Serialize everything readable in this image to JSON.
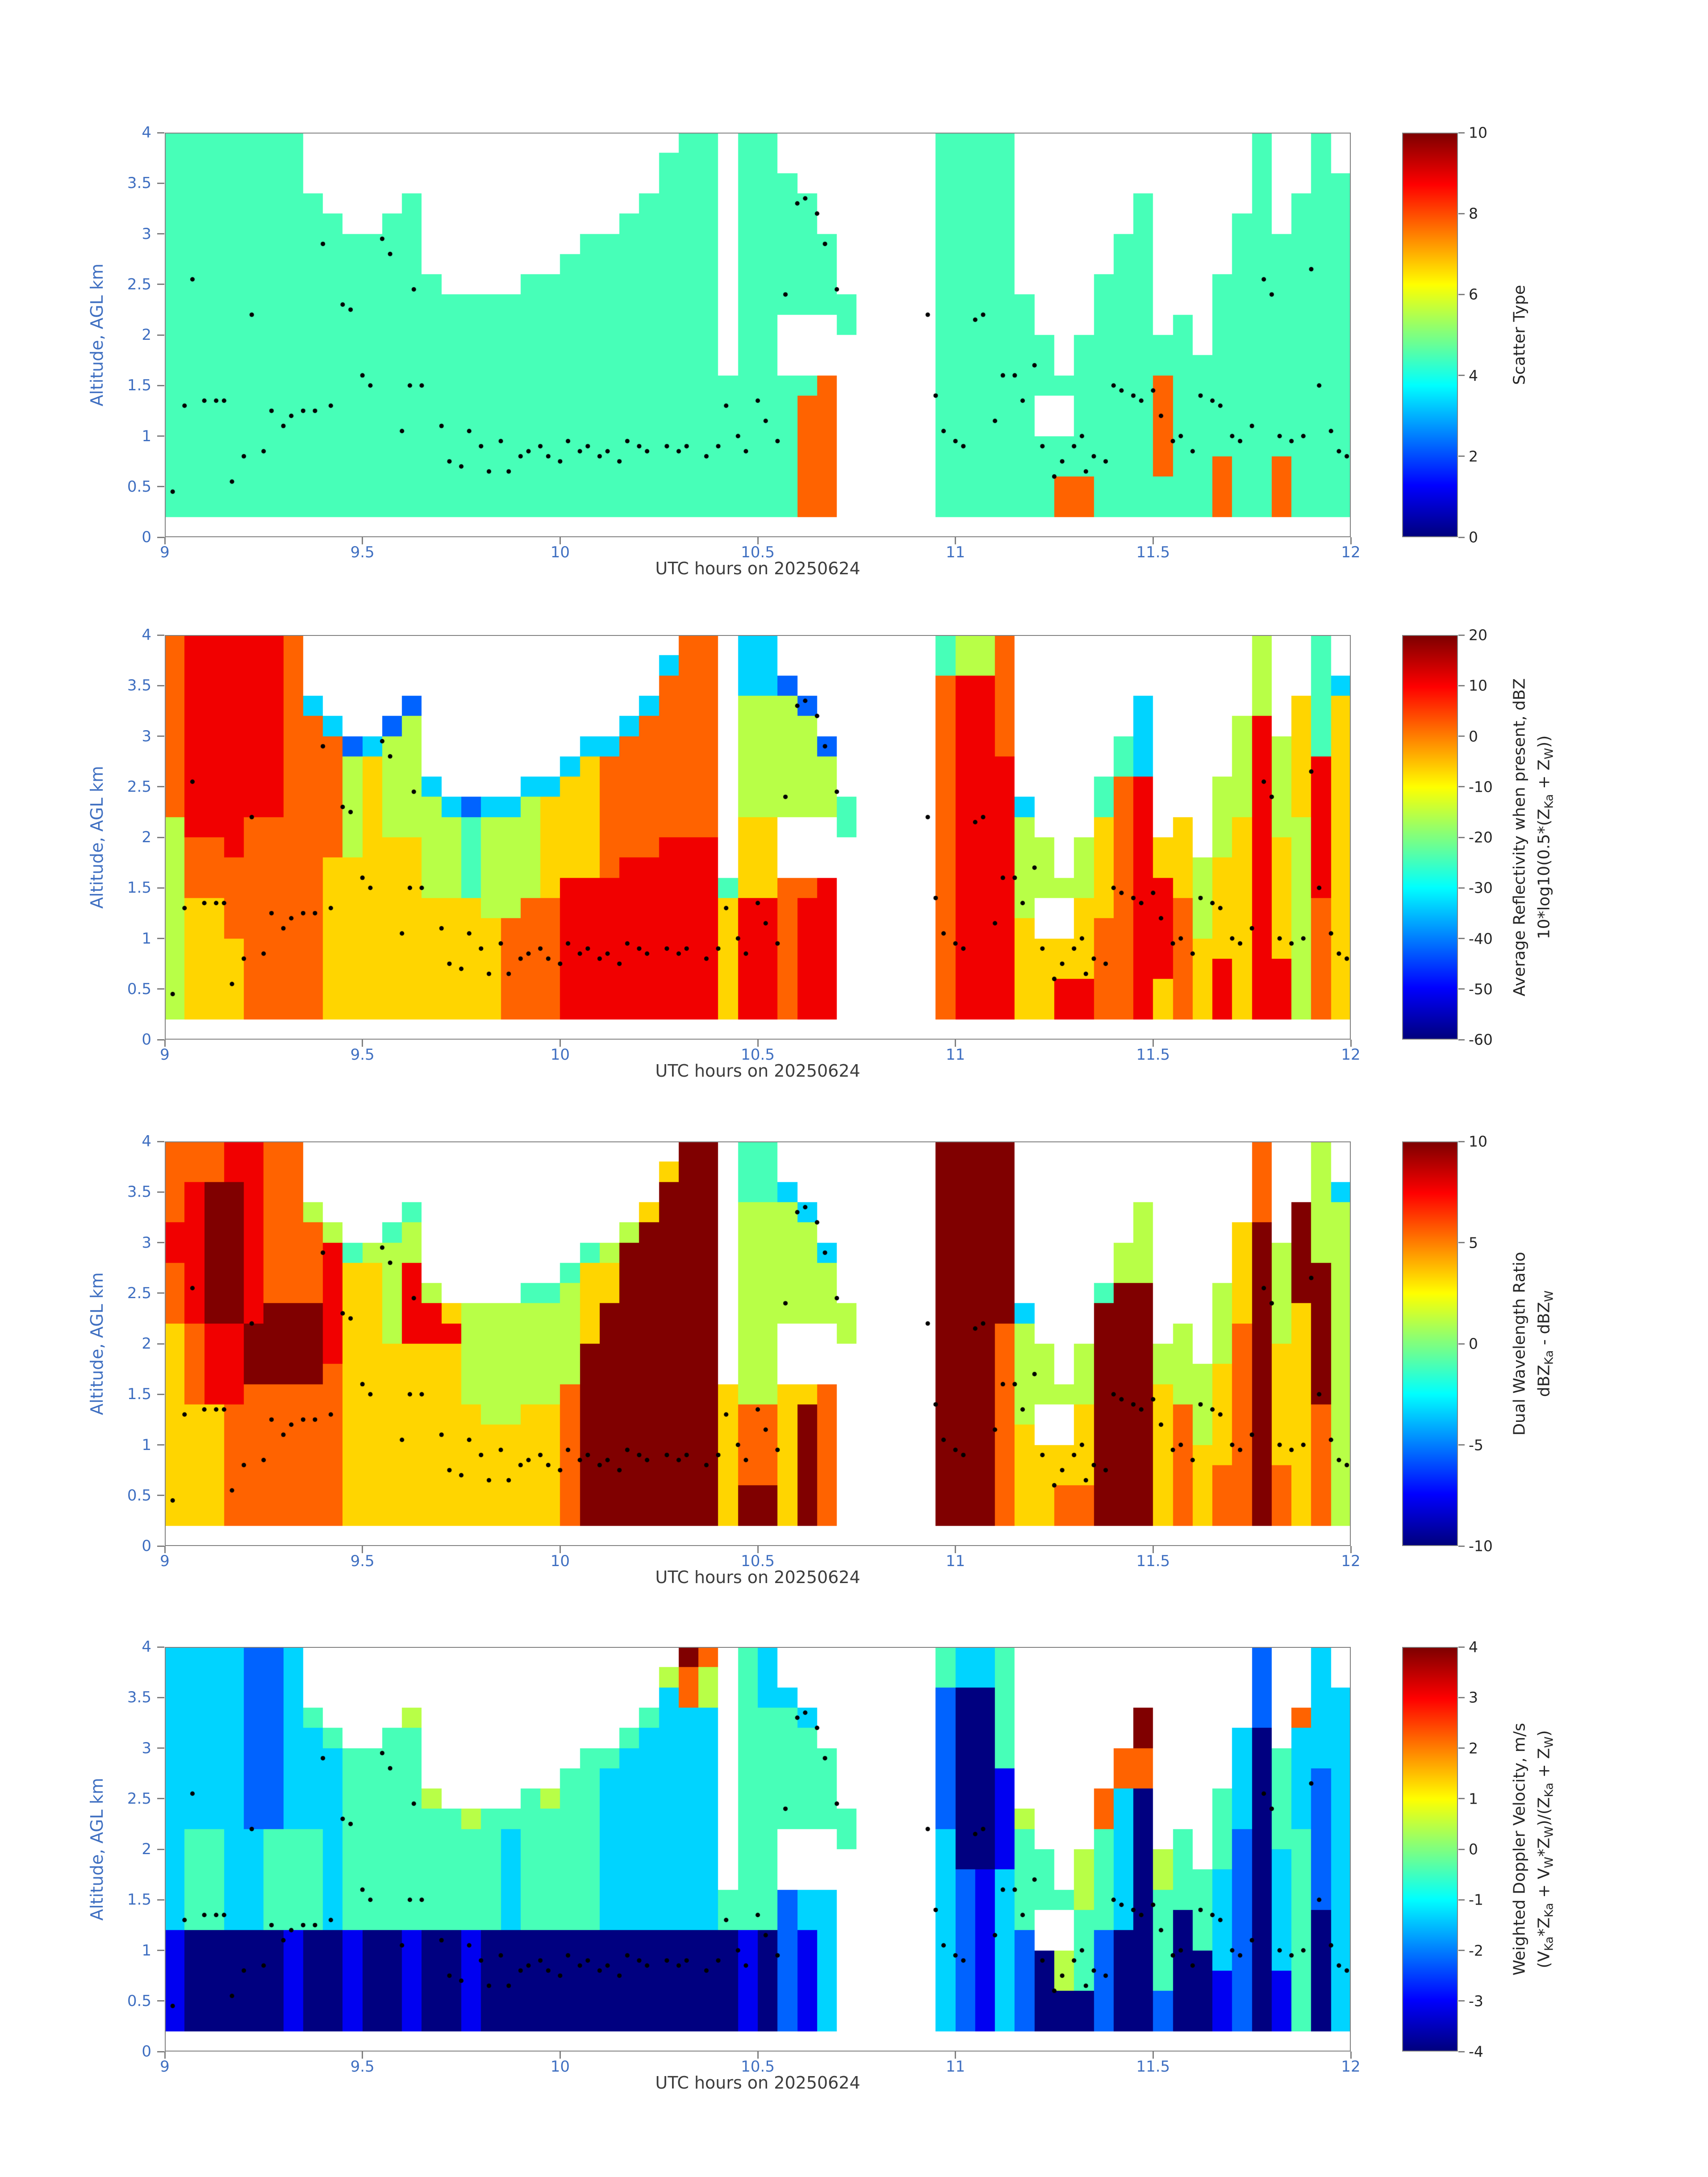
{
  "figure": {
    "xlabel": "UTC hours on 20250624",
    "ylabel": "Altitude, AGL km",
    "x_ticks": [
      "9",
      "9.5",
      "10",
      "10.5",
      "11",
      "11.5",
      "12"
    ],
    "y_ticks": [
      "0",
      "0.5",
      "1",
      "1.5",
      "2",
      "2.5",
      "3",
      "3.5",
      "4"
    ],
    "x_range": [
      9,
      12
    ],
    "y_range": [
      0,
      4
    ],
    "colormap": "jet",
    "colors": {
      "tick_label": "#3f6fc1",
      "x_label": "#3d3d3d",
      "axis_line": "#808080",
      "colorbar_text": "#262626",
      "dot": "#000000",
      "background": "#ffffff"
    }
  },
  "overlay_dots": [
    [
      9.02,
      0.45
    ],
    [
      9.05,
      1.3
    ],
    [
      9.07,
      2.55
    ],
    [
      9.1,
      1.35
    ],
    [
      9.13,
      1.35
    ],
    [
      9.15,
      1.35
    ],
    [
      9.17,
      0.55
    ],
    [
      9.2,
      0.8
    ],
    [
      9.22,
      2.2
    ],
    [
      9.25,
      0.85
    ],
    [
      9.27,
      1.25
    ],
    [
      9.3,
      1.1
    ],
    [
      9.32,
      1.2
    ],
    [
      9.35,
      1.25
    ],
    [
      9.38,
      1.25
    ],
    [
      9.4,
      2.9
    ],
    [
      9.42,
      1.3
    ],
    [
      9.45,
      2.3
    ],
    [
      9.47,
      2.25
    ],
    [
      9.5,
      1.6
    ],
    [
      9.52,
      1.5
    ],
    [
      9.55,
      2.95
    ],
    [
      9.57,
      2.8
    ],
    [
      9.6,
      1.05
    ],
    [
      9.62,
      1.5
    ],
    [
      9.63,
      2.45
    ],
    [
      9.65,
      1.5
    ],
    [
      9.7,
      1.1
    ],
    [
      9.72,
      0.75
    ],
    [
      9.75,
      0.7
    ],
    [
      9.77,
      1.05
    ],
    [
      9.8,
      0.9
    ],
    [
      9.82,
      0.65
    ],
    [
      9.85,
      0.95
    ],
    [
      9.87,
      0.65
    ],
    [
      9.9,
      0.8
    ],
    [
      9.92,
      0.85
    ],
    [
      9.95,
      0.9
    ],
    [
      9.97,
      0.8
    ],
    [
      10.0,
      0.75
    ],
    [
      10.02,
      0.95
    ],
    [
      10.05,
      0.85
    ],
    [
      10.07,
      0.9
    ],
    [
      10.1,
      0.8
    ],
    [
      10.12,
      0.85
    ],
    [
      10.15,
      0.75
    ],
    [
      10.17,
      0.95
    ],
    [
      10.2,
      0.9
    ],
    [
      10.22,
      0.85
    ],
    [
      10.27,
      0.9
    ],
    [
      10.3,
      0.85
    ],
    [
      10.32,
      0.9
    ],
    [
      10.37,
      0.8
    ],
    [
      10.4,
      0.9
    ],
    [
      10.42,
      1.3
    ],
    [
      10.45,
      1.0
    ],
    [
      10.47,
      0.85
    ],
    [
      10.5,
      1.35
    ],
    [
      10.52,
      1.15
    ],
    [
      10.55,
      0.95
    ],
    [
      10.57,
      2.4
    ],
    [
      10.6,
      3.3
    ],
    [
      10.62,
      3.35
    ],
    [
      10.65,
      3.2
    ],
    [
      10.67,
      2.9
    ],
    [
      10.7,
      2.45
    ],
    [
      10.93,
      2.2
    ],
    [
      10.95,
      1.4
    ],
    [
      10.97,
      1.05
    ],
    [
      11.0,
      0.95
    ],
    [
      11.02,
      0.9
    ],
    [
      11.05,
      2.15
    ],
    [
      11.07,
      2.2
    ],
    [
      11.1,
      1.15
    ],
    [
      11.12,
      1.6
    ],
    [
      11.15,
      1.6
    ],
    [
      11.17,
      1.35
    ],
    [
      11.2,
      1.7
    ],
    [
      11.22,
      0.9
    ],
    [
      11.25,
      0.6
    ],
    [
      11.27,
      0.75
    ],
    [
      11.3,
      0.9
    ],
    [
      11.32,
      1.0
    ],
    [
      11.33,
      0.65
    ],
    [
      11.35,
      0.8
    ],
    [
      11.38,
      0.75
    ],
    [
      11.4,
      1.5
    ],
    [
      11.42,
      1.45
    ],
    [
      11.45,
      1.4
    ],
    [
      11.47,
      1.35
    ],
    [
      11.5,
      1.45
    ],
    [
      11.52,
      1.2
    ],
    [
      11.55,
      0.95
    ],
    [
      11.57,
      1.0
    ],
    [
      11.6,
      0.85
    ],
    [
      11.62,
      1.4
    ],
    [
      11.65,
      1.35
    ],
    [
      11.67,
      1.3
    ],
    [
      11.7,
      1.0
    ],
    [
      11.72,
      0.95
    ],
    [
      11.75,
      1.1
    ],
    [
      11.78,
      2.55
    ],
    [
      11.8,
      2.4
    ],
    [
      11.82,
      1.0
    ],
    [
      11.85,
      0.95
    ],
    [
      11.88,
      1.0
    ],
    [
      11.9,
      2.65
    ],
    [
      11.92,
      1.5
    ],
    [
      11.95,
      1.05
    ],
    [
      11.97,
      0.85
    ],
    [
      11.99,
      0.8
    ]
  ],
  "chart_data": [
    {
      "type": "heatmap",
      "name": "scatter-type",
      "xlabel": "UTC hours on 20250624",
      "ylabel": "Altitude, AGL km",
      "x_range": [
        9,
        12
      ],
      "y_range": [
        0,
        4
      ],
      "value_range": [
        0,
        10
      ],
      "colorbar_ticks": [
        0,
        2,
        4,
        6,
        8,
        10
      ],
      "colorbar_label_lines": [
        "Scatter Type"
      ],
      "grid_encoding": "20 rows top(4km)->bottom(0km), 60 cols 9->12 UTC (0.05 h per col, 0.2 km per row); chars 0-9 map linearly onto value_range via jet colormap; '.' = no data",
      "grid": [
        "4444444...................44.44........4444............4..4.",
        "4444444..................444.44........4444............4..4.",
        "4444444..................444.444.......4444............4..44",
        "44444444....4...........4444.4444......4444......4.....4.444",
        "444444444..44..........44444.4444......4444......4....44.444",
        "4444444444444........4444444.44444.....4444.....44....444444",
        "4444444444444.......44444444.44444.....4444.....44....444444",
        "44444444444444....4444444444.44444.....4444....444...4444444",
        "4444444444444444444444444444.444444....44444...444...4444444",
        "4444444444444444444444444444.44...4....44444...444.4.4444444",
        "4444444444444444444444444444.44........444444.444444.4444444",
        "4444444444444444444444444444.44........444444.44444444444444",
        "4444444444444444444444444444444447.....444444444447444444444",
        "4444444444444444444444444444444477.....44444..44447444444444",
        "4444444444444444444444444444444477.....44444..44447444444444",
        "4444444444444444444444444444444477.....444444444447444444444",
        "4444444444444444444444444444444477.....444444444447447447444",
        "4444444444444444444444444444444477.....444444774444447447444",
        "4444444444444444444444444444444477.....444444774444447447444",
        "............................................................"
      ]
    },
    {
      "type": "heatmap",
      "name": "average-reflectivity",
      "xlabel": "UTC hours on 20250624",
      "ylabel": "Altitude, AGL km",
      "x_range": [
        9,
        12
      ],
      "y_range": [
        0,
        4
      ],
      "value_range": [
        -60,
        20
      ],
      "colorbar_ticks": [
        -60,
        -50,
        -40,
        -30,
        -20,
        -10,
        0,
        10,
        20
      ],
      "colorbar_label_lines": [
        "Average Reflectivity when present, dBZ",
        "10*log10(0.5*(Z_{Ka} + Z_{W}))"
      ],
      "grid_encoding": "20 rows top(4km)->bottom(0km), 60 cols 9->12 UTC; chars 0-9 map linearly onto value_range via jet colormap; '.' = no data",
      "grid": [
        "7888887...................77.33........4557............5..4.",
        "7888887..................377.33........4557............5..4.",
        "7888887..................777.332.......7887............5..43",
        "78888873....2...........3777.5552......7887......3.....5.646",
        "788888773..25..........37777.5555......7887......3....58.646",
        "7888887772355........3377777.55552.....7887.....43....585646",
        "7888887775655.......36777777.55555.....7888.....43....585686",
        "78888877756553....3366777777.55555.....7888....478...5585686",
        "7888887775655532335666777777.555554....78883...478...5585686",
        "5888777775655554555666777777.66...4....78885...678.6.5685586",
        "5778777775666554555666777888.66........788855.567866.5686586",
        "5777777766666554555666788888.66........788855.56786656686586",
        "5777777766666554555688888888466778.....788855556788656686586",
        "5667777766666666557788888888688788.....78885..66788756686576",
        "5667777766666666677788888888688788.....78886..67788756686576",
        "5666777766666666677788888888688788.....788866667788766686576",
        "5666777766666666677788888888688788.....788866667788768688576",
        "5666777766666666677788888888688788.....788866887786768688576",
        "5666777766666666677788888888688788.....788866887786768688576",
        "............................................................"
      ]
    },
    {
      "type": "heatmap",
      "name": "dual-wavelength-ratio",
      "xlabel": "UTC hours on 20250624",
      "ylabel": "Altitude, AGL km",
      "x_range": [
        9,
        12
      ],
      "y_range": [
        0,
        4
      ],
      "value_range": [
        -10,
        10
      ],
      "colorbar_ticks": [
        -10,
        -5,
        0,
        5,
        10
      ],
      "colorbar_label_lines": [
        "Dual Wavelength Ratio",
        "dBZ_{Ka} - dBZ_{W}"
      ],
      "grid_encoding": "20 rows top(4km)->bottom(0km), 60 cols 9->12 UTC; chars 0-9 map linearly onto value_range via jet colormap; '.' = no data",
      "grid": [
        "7778877...................99.44........9999............7..5.",
        "7778877..................699.44........9999............7..5.",
        "7899877..................999.443.......9999............7..53",
        "78998775....4...........6999.5553......9999......5.....7.955",
        "889987775..45..........59999.5555......9999......5....69.955",
        "8899877784555........4599999.55553.....9999.....55....695955",
        "7899877786658.......46699999.55555.....9999.....55....695995",
        "78998777866585....4456699999.55555.....9999....499...5695995",
        "7899899986658865555556999999.555555....99993...999...5695695",
        "6788999986658885555556999999.55...5....99975...999.5.5795695",
        "6788999986666665555559999999.55........999755.599955.5796695",
        "6788999976666665555559999999.55........999755.59995556796695",
        "6788777776666665555579999999655667.....999755559996556796695",
        "6667777776666666556679999999677697.....99975..69996756796675",
        "6667777776666666666679999999677697.....99976..69996756796675",
        "6667777776666666666679999999677697.....999766669996766796675",
        "6667777776666666666679999999677697.....999766669996767797675",
        "6667777776666666666679999999699697.....999766779996767797675",
        "6667777776666666666679999999699697.....999766779996767797675",
        "............................................................"
      ]
    },
    {
      "type": "heatmap",
      "name": "weighted-doppler-velocity",
      "xlabel": "UTC hours on 20250624",
      "ylabel": "Altitude, AGL km",
      "x_range": [
        9,
        12
      ],
      "y_range": [
        0,
        4
      ],
      "value_range": [
        -4,
        4
      ],
      "colorbar_ticks": [
        -4,
        -3,
        -2,
        -1,
        0,
        1,
        2,
        3,
        4
      ],
      "colorbar_label_lines": [
        "Weighted Doppler Velocity, m/s",
        "(V_{Ka}*Z_{Ka} + V_{W}*Z_{W})/(Z_{Ka} + Z_{W})"
      ],
      "grid_encoding": "20 rows top(4km)->bottom(0km), 60 cols 9->12 UTC; chars 0-9 map linearly onto value_range via jet colormap; '.' = no data",
      "grid": [
        "3333223...................97.43........4334............2..3.",
        "3333223..................575.43........4334............2..3.",
        "3333223..................375.433.......2004............2..33",
        "33332234....5...........4333.4443......2004......9.....2.733",
        "333322334..44..........43333.4444......2004......9....30.333",
        "3333223334444........4433333.44444.....2004.....77....304333",
        "3333223334444.......44333333.44444.....2001.....77....304323",
        "33332233344445....4544333333.44444.....2001....730...4304323",
        "3333223334444445444444333333.444444....20015...730...4304323",
        "3443344434444444434444333333.44...4....30014...430.4.4204423",
        "3443344434444444434444333333.44........300144.543054.4203423",
        "3443344434444444434444333333.44........321344.54305443203423",
        "3443344434444444434444333333444233.....321344454304443203423",
        "3443344434444444434444333333444233.....32134..44304043203403",
        "1000001001001001000000000000010213.....32132..42004043203403",
        "1000001001001001000000000000010213.....321320542004003203403",
        "1000001001001001000000000000010213.....321320542004001201403",
        "1000001001001001000000000000010213.....321320002002001201403",
        "1000001001001001000000000000010213.....321320002002001201403",
        "............................................................"
      ]
    }
  ]
}
